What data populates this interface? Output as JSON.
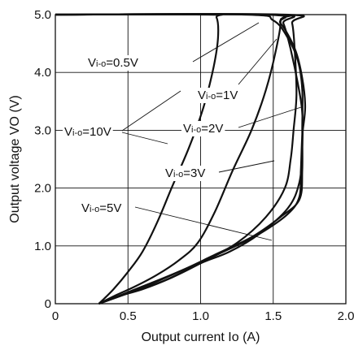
{
  "chart_data": {
    "type": "line",
    "xlabel": "Output current Io (A)",
    "ylabel": "Output voltage VO (V)",
    "xlim": [
      0,
      2.0
    ],
    "ylim": [
      0,
      5.0
    ],
    "x_ticks": [
      "0",
      "0.5",
      "1.0",
      "1.5",
      "2.0"
    ],
    "y_ticks": [
      "0",
      "1.0",
      "2.0",
      "3.0",
      "4.0",
      "5.0"
    ],
    "grid": true,
    "annotations": [
      {
        "var": "V",
        "sub": "i-o",
        "rest": "=0.5V"
      },
      {
        "var": "V",
        "sub": "i-o",
        "rest": "=1V"
      },
      {
        "var": "V",
        "sub": "i-o",
        "rest": "=10V"
      },
      {
        "var": "V",
        "sub": "i-o",
        "rest": "=2V"
      },
      {
        "var": "V",
        "sub": "i-o",
        "rest": "=3V"
      },
      {
        "var": "V",
        "sub": "i-o",
        "rest": "=5V"
      }
    ],
    "series": [
      {
        "points": [
          [
            0,
            5.0
          ],
          [
            1.05,
            5.0
          ],
          [
            1.11,
            4.95
          ],
          [
            1.12,
            4.6
          ],
          [
            1.09,
            4.1
          ],
          [
            1.02,
            3.4
          ],
          [
            0.92,
            2.7
          ],
          [
            0.8,
            2.0
          ],
          [
            0.7,
            1.4
          ],
          [
            0.6,
            0.9
          ],
          [
            0.5,
            0.55
          ],
          [
            0.4,
            0.25
          ],
          [
            0.3,
            0.0
          ]
        ]
      },
      {
        "points": [
          [
            0,
            5.0
          ],
          [
            1.5,
            5.0
          ],
          [
            1.55,
            4.9
          ],
          [
            1.52,
            4.4
          ],
          [
            1.45,
            3.7
          ],
          [
            1.35,
            3.0
          ],
          [
            1.22,
            2.3
          ],
          [
            1.1,
            1.6
          ],
          [
            0.98,
            1.05
          ],
          [
            0.85,
            0.75
          ],
          [
            0.7,
            0.5
          ],
          [
            0.55,
            0.3
          ],
          [
            0.42,
            0.15
          ],
          [
            0.3,
            0.0
          ]
        ]
      },
      {
        "points": [
          [
            0,
            5.0
          ],
          [
            1.58,
            5.0
          ],
          [
            1.63,
            4.85
          ],
          [
            1.65,
            4.3
          ],
          [
            1.66,
            3.6
          ],
          [
            1.64,
            3.0
          ],
          [
            1.62,
            2.5
          ],
          [
            1.58,
            2.0
          ],
          [
            1.45,
            1.5
          ],
          [
            1.25,
            1.05
          ],
          [
            1.0,
            0.7
          ],
          [
            0.8,
            0.45
          ],
          [
            0.6,
            0.25
          ],
          [
            0.42,
            0.12
          ],
          [
            0.3,
            0.0
          ]
        ]
      },
      {
        "points": [
          [
            0,
            5.0
          ],
          [
            1.52,
            5.0
          ],
          [
            1.57,
            4.85
          ],
          [
            1.62,
            4.4
          ],
          [
            1.67,
            3.8
          ],
          [
            1.7,
            3.3
          ],
          [
            1.7,
            2.7
          ],
          [
            1.68,
            2.1
          ],
          [
            1.6,
            1.65
          ],
          [
            1.4,
            1.2
          ],
          [
            1.2,
            0.9
          ],
          [
            1.0,
            0.7
          ],
          [
            0.75,
            0.4
          ],
          [
            0.5,
            0.18
          ],
          [
            0.3,
            0.0
          ]
        ]
      },
      {
        "points": [
          [
            0,
            5.0
          ],
          [
            1.45,
            5.0
          ],
          [
            1.55,
            4.85
          ],
          [
            1.65,
            4.4
          ],
          [
            1.7,
            3.9
          ],
          [
            1.72,
            3.4
          ],
          [
            1.7,
            2.9
          ],
          [
            1.69,
            2.3
          ],
          [
            1.68,
            1.85
          ],
          [
            1.6,
            1.55
          ],
          [
            1.4,
            1.2
          ],
          [
            1.2,
            0.95
          ],
          [
            1.0,
            0.72
          ],
          [
            0.75,
            0.45
          ],
          [
            0.5,
            0.2
          ],
          [
            0.3,
            0.0
          ]
        ]
      },
      {
        "points": [
          [
            0,
            5.0
          ],
          [
            1.3,
            5.0
          ],
          [
            1.5,
            4.9
          ],
          [
            1.6,
            4.6
          ],
          [
            1.67,
            4.2
          ],
          [
            1.7,
            3.7
          ],
          [
            1.7,
            3.0
          ],
          [
            1.7,
            2.3
          ],
          [
            1.68,
            1.8
          ],
          [
            1.55,
            1.5
          ],
          [
            1.35,
            1.15
          ],
          [
            1.1,
            0.85
          ],
          [
            0.85,
            0.55
          ],
          [
            0.6,
            0.28
          ],
          [
            0.3,
            0.0
          ]
        ]
      }
    ]
  }
}
